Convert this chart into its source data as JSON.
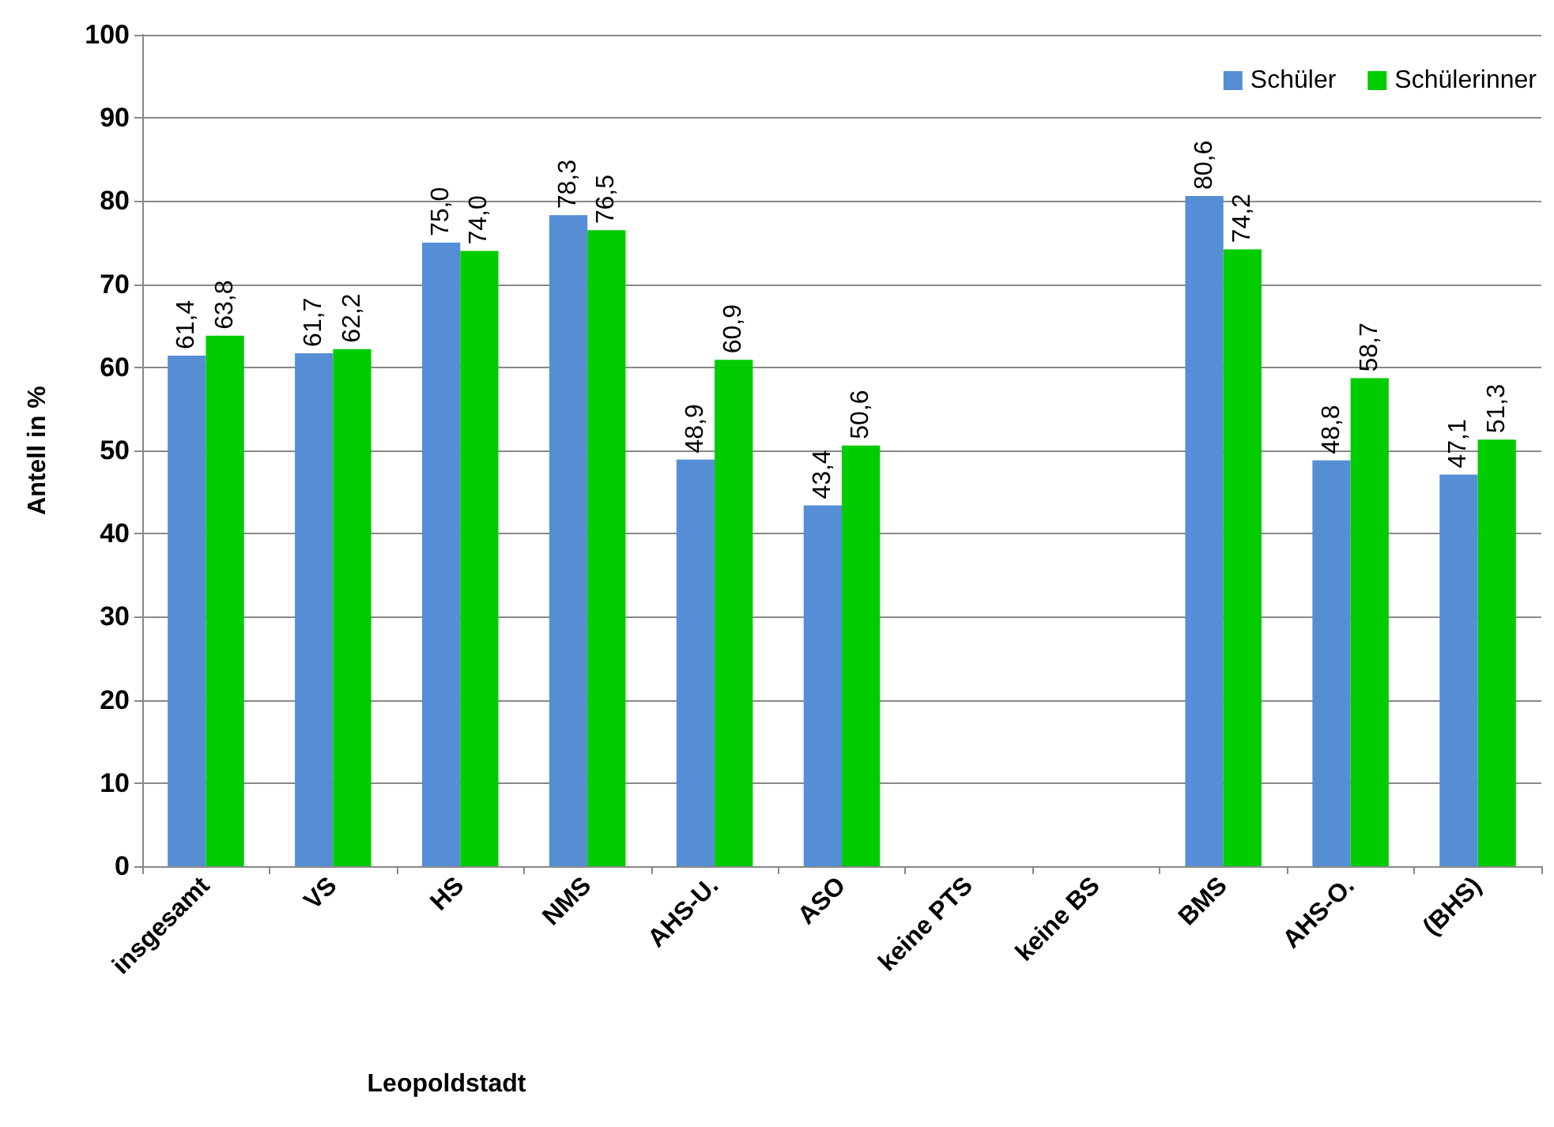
{
  "chart_data": {
    "type": "bar",
    "xlabel": "Leopoldstadt",
    "ylabel": "Antell in %",
    "categories": [
      "insgesamt",
      "VS",
      "HS",
      "NMS",
      "AHS-U.",
      "ASO",
      "keine PTS",
      "keine BS",
      "BMS",
      "AHS-O.",
      "(BHS)"
    ],
    "series": [
      {
        "name": "Schüler",
        "color": "#558ed5",
        "values": [
          61.4,
          61.7,
          75.0,
          78.3,
          48.9,
          43.4,
          null,
          null,
          80.6,
          48.8,
          47.1
        ],
        "value_labels": [
          "61,4",
          "61,7",
          "75,0",
          "78,3",
          "48,9",
          "43,4",
          null,
          null,
          "80,6",
          "48,8",
          "47,1"
        ]
      },
      {
        "name": "Schülerinner",
        "color": "#00cc00",
        "values": [
          63.8,
          62.2,
          74.0,
          76.5,
          60.9,
          50.6,
          null,
          null,
          74.2,
          58.7,
          51.3
        ],
        "value_labels": [
          "63,8",
          "62,2",
          "74,0",
          "76,5",
          "60,9",
          "50,6",
          null,
          null,
          "74,2",
          "58,7",
          "51,3"
        ]
      }
    ],
    "ylim": [
      0,
      100
    ],
    "yticks": [
      0,
      10,
      20,
      30,
      40,
      50,
      60,
      70,
      80,
      90,
      100
    ],
    "grid": "y",
    "legend": "top right"
  }
}
